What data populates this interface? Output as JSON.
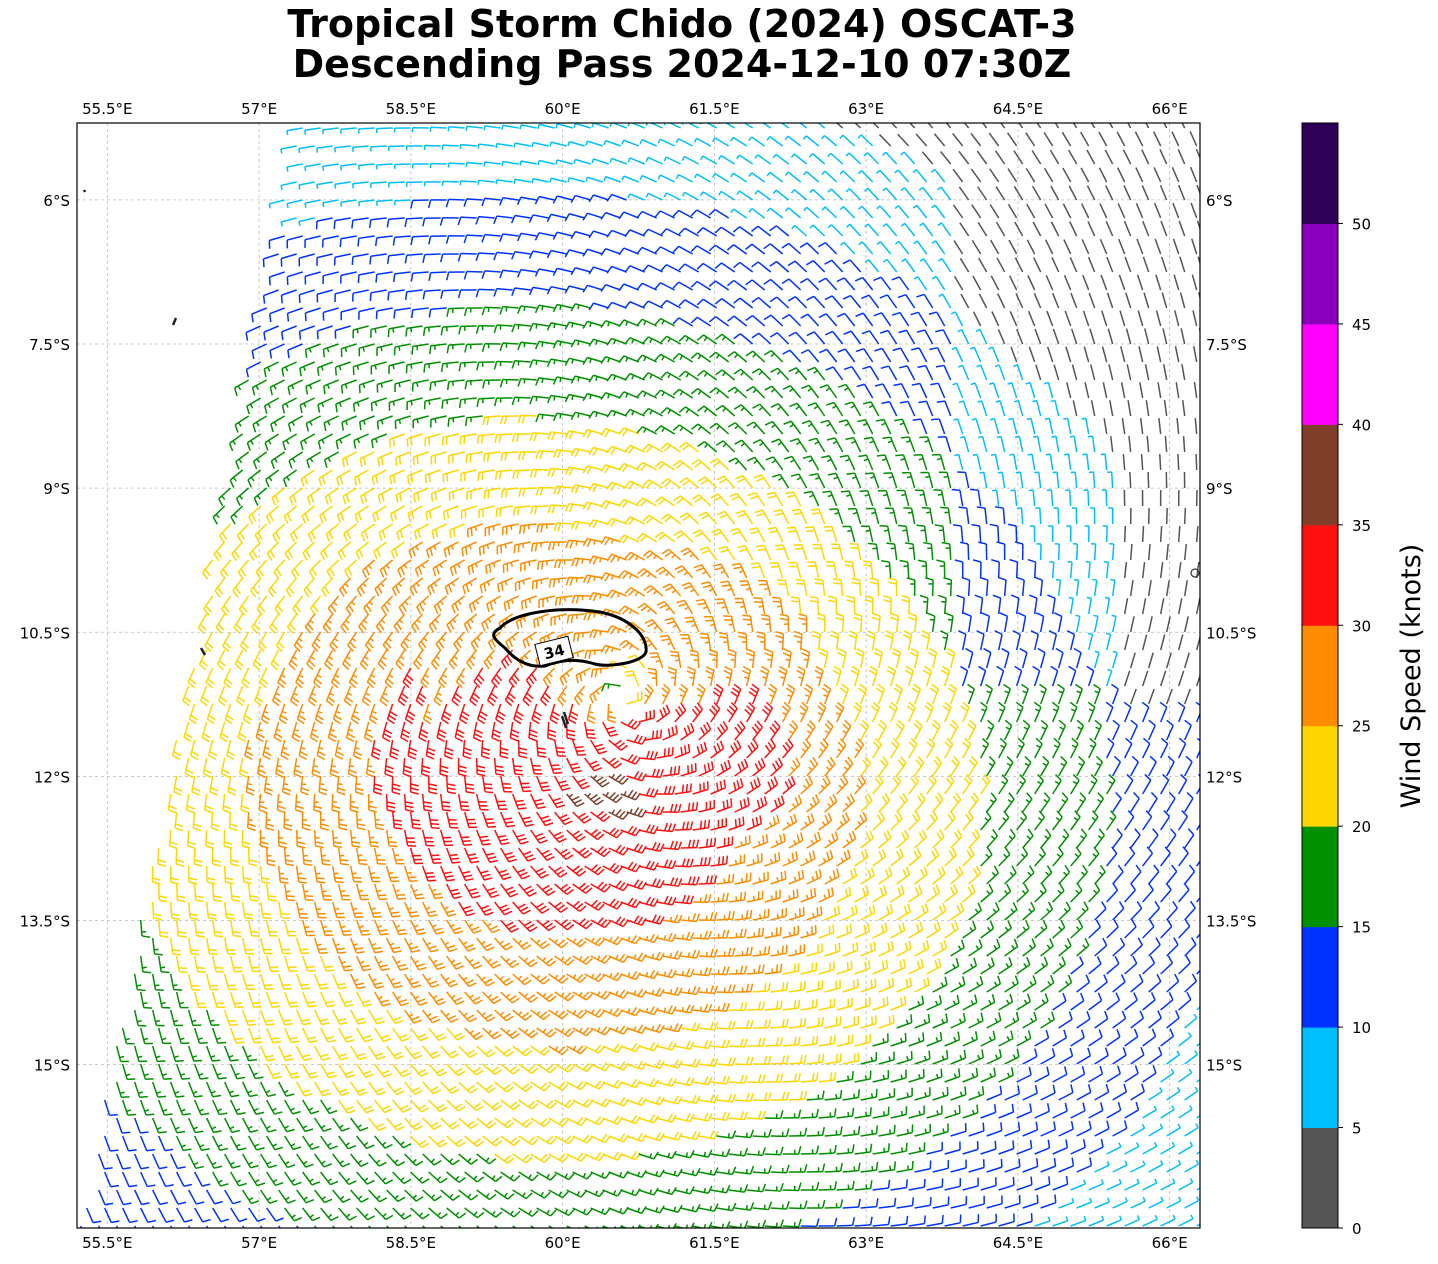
{
  "title": {
    "line1": "Tropical Storm Chido (2024) OSCAT-3",
    "line2": "Descending Pass 2024-12-10 07:30Z"
  },
  "chart_data": {
    "type": "wind-barb map",
    "title": "Tropical Storm Chido (2024) OSCAT-3 Descending Pass 2024-12-10 07:30Z",
    "lon_range": [
      55.2,
      66.3
    ],
    "lat_range": [
      -16.7,
      -5.2
    ],
    "lon_ticks": [
      55.5,
      57,
      58.5,
      60,
      61.5,
      63,
      64.5,
      66
    ],
    "lon_tick_labels": [
      "55.5°E",
      "57°E",
      "58.5°E",
      "60°E",
      "61.5°E",
      "63°E",
      "64.5°E",
      "66°E"
    ],
    "lat_ticks": [
      -6,
      -7.5,
      -9,
      -10.5,
      -12,
      -13.5,
      -15
    ],
    "lat_tick_labels": [
      "6°S",
      "7.5°S",
      "9°S",
      "10.5°S",
      "12°S",
      "13.5°S",
      "15°S"
    ],
    "grid": true,
    "storm_center": {
      "lon": 60.6,
      "lat": -11.2
    },
    "contour": {
      "level": 34,
      "label": "34"
    },
    "colorbar": {
      "label": "Wind Speed (knots)",
      "bounds": [
        0,
        5,
        10,
        15,
        20,
        25,
        30,
        35,
        40,
        45,
        50,
        55
      ],
      "tick_labels": [
        "0",
        "5",
        "10",
        "15",
        "20",
        "25",
        "30",
        "35",
        "40",
        "45",
        "50"
      ],
      "colors": [
        "#555555",
        "#00bfff",
        "#0033ff",
        "#009000",
        "#ffd700",
        "#ff8c00",
        "#ff1010",
        "#803f2a",
        "#ff00ff",
        "#8800bb",
        "#2e0057"
      ]
    }
  }
}
